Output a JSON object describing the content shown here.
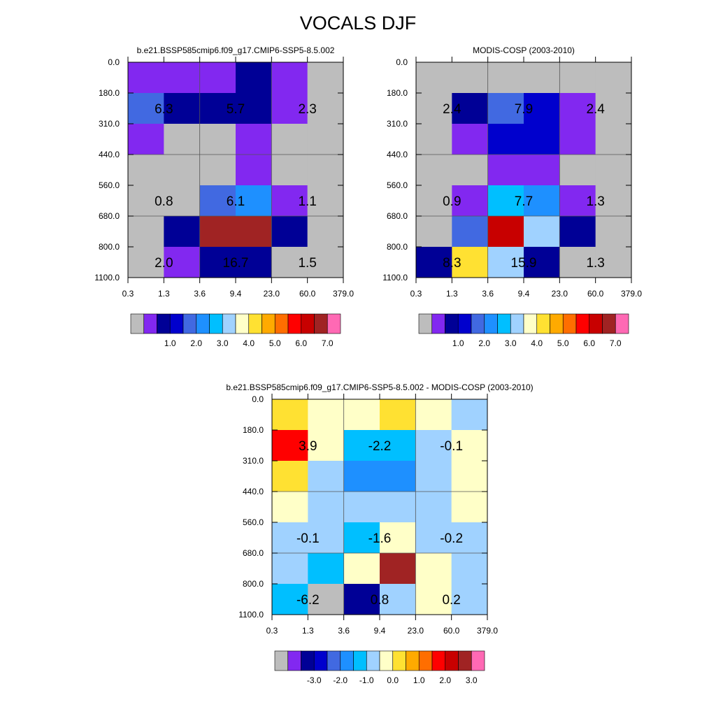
{
  "figure": {
    "title": "VOCALS DJF"
  },
  "palette": [
    "#BDBDBD",
    "#8228F0",
    "#000096",
    "#0000CD",
    "#4169E1",
    "#1E90FF",
    "#00BFFF",
    "#A0D2FF",
    "#FFFFC8",
    "#FFE132",
    "#FFAA00",
    "#FF6E00",
    "#FF0000",
    "#C80000",
    "#A02323",
    "#FF69B4"
  ],
  "chart_data": [
    {
      "type": "heatmap",
      "title": "b.e21.BSSP585cmip6.f09_g17.CMIP6-SSP5-8.5.002",
      "x_ticks": [
        "0.3",
        "1.3",
        "3.6",
        "9.4",
        "23.0",
        "60.0",
        "379.0"
      ],
      "y_ticks": [
        "0.0",
        "180.0",
        "310.0",
        "440.0",
        "560.0",
        "680.0",
        "800.0",
        "1100.0"
      ],
      "cells": [
        [
          1,
          1,
          1,
          2,
          1,
          0
        ],
        [
          4,
          2,
          2,
          2,
          1,
          0
        ],
        [
          1,
          0,
          0,
          1,
          0,
          0
        ],
        [
          0,
          0,
          0,
          1,
          0,
          0
        ],
        [
          0,
          0,
          4,
          5,
          1,
          0
        ],
        [
          0,
          2,
          14,
          14,
          2,
          0
        ],
        [
          0,
          1,
          2,
          2,
          0,
          0
        ]
      ],
      "labels": [
        {
          "row": 1,
          "col": 0,
          "text": "6.3"
        },
        {
          "row": 1,
          "col": 2,
          "text": "5.7"
        },
        {
          "row": 1,
          "col": 4,
          "text": "2.3"
        },
        {
          "row": 4,
          "col": 0,
          "text": "0.8"
        },
        {
          "row": 4,
          "col": 2,
          "text": "6.1"
        },
        {
          "row": 4,
          "col": 4,
          "text": "1.1"
        },
        {
          "row": 6,
          "col": 0,
          "text": "2.0"
        },
        {
          "row": 6,
          "col": 2,
          "text": "16.7"
        },
        {
          "row": 6,
          "col": 4,
          "text": "1.5"
        }
      ],
      "colorbar_labels": [
        "1.0",
        "2.0",
        "3.0",
        "4.0",
        "5.0",
        "6.0",
        "7.0"
      ]
    },
    {
      "type": "heatmap",
      "title": "MODIS-COSP (2003-2010)",
      "x_ticks": [
        "0.3",
        "1.3",
        "3.6",
        "9.4",
        "23.0",
        "60.0",
        "379.0"
      ],
      "y_ticks": [
        "0.0",
        "180.0",
        "310.0",
        "440.0",
        "560.0",
        "680.0",
        "800.0",
        "1100.0"
      ],
      "cells": [
        [
          0,
          0,
          0,
          0,
          0,
          0
        ],
        [
          0,
          2,
          4,
          3,
          1,
          0
        ],
        [
          0,
          1,
          3,
          3,
          1,
          0
        ],
        [
          0,
          0,
          1,
          1,
          0,
          0
        ],
        [
          0,
          1,
          6,
          5,
          1,
          0
        ],
        [
          0,
          4,
          13,
          7,
          2,
          0
        ],
        [
          2,
          9,
          7,
          2,
          0,
          0
        ]
      ],
      "labels": [
        {
          "row": 1,
          "col": 0,
          "text": "2.4"
        },
        {
          "row": 1,
          "col": 2,
          "text": "7.9"
        },
        {
          "row": 1,
          "col": 4,
          "text": "2.4"
        },
        {
          "row": 4,
          "col": 0,
          "text": "0.9"
        },
        {
          "row": 4,
          "col": 2,
          "text": "7.7"
        },
        {
          "row": 4,
          "col": 4,
          "text": "1.3"
        },
        {
          "row": 6,
          "col": 0,
          "text": "8.3"
        },
        {
          "row": 6,
          "col": 2,
          "text": "15.9"
        },
        {
          "row": 6,
          "col": 4,
          "text": "1.3"
        }
      ],
      "colorbar_labels": [
        "1.0",
        "2.0",
        "3.0",
        "4.0",
        "5.0",
        "6.0",
        "7.0"
      ]
    },
    {
      "type": "heatmap",
      "title": "b.e21.BSSP585cmip6.f09_g17.CMIP6-SSP5-8.5.002 - MODIS-COSP (2003-2010)",
      "x_ticks": [
        "0.3",
        "1.3",
        "3.6",
        "9.4",
        "23.0",
        "60.0",
        "379.0"
      ],
      "y_ticks": [
        "0.0",
        "180.0",
        "310.0",
        "440.0",
        "560.0",
        "680.0",
        "800.0",
        "1100.0"
      ],
      "cells": [
        [
          9,
          8,
          8,
          9,
          8,
          7
        ],
        [
          12,
          8,
          6,
          6,
          7,
          8
        ],
        [
          9,
          7,
          5,
          5,
          7,
          8
        ],
        [
          8,
          7,
          7,
          7,
          7,
          8
        ],
        [
          7,
          7,
          6,
          8,
          7,
          7
        ],
        [
          7,
          6,
          8,
          14,
          8,
          7
        ],
        [
          6,
          0,
          2,
          7,
          8,
          7
        ]
      ],
      "labels": [
        {
          "row": 1,
          "col": 0,
          "text": "3.9"
        },
        {
          "row": 1,
          "col": 2,
          "text": "-2.2"
        },
        {
          "row": 1,
          "col": 4,
          "text": "-0.1"
        },
        {
          "row": 4,
          "col": 0,
          "text": "-0.1"
        },
        {
          "row": 4,
          "col": 2,
          "text": "-1.6"
        },
        {
          "row": 4,
          "col": 4,
          "text": "-0.2"
        },
        {
          "row": 6,
          "col": 0,
          "text": "-6.2"
        },
        {
          "row": 6,
          "col": 2,
          "text": "0.8"
        },
        {
          "row": 6,
          "col": 4,
          "text": "0.2"
        }
      ],
      "colorbar_labels": [
        "-3.0",
        "-2.0",
        "-1.0",
        "0.0",
        "1.0",
        "2.0",
        "3.0"
      ]
    }
  ]
}
